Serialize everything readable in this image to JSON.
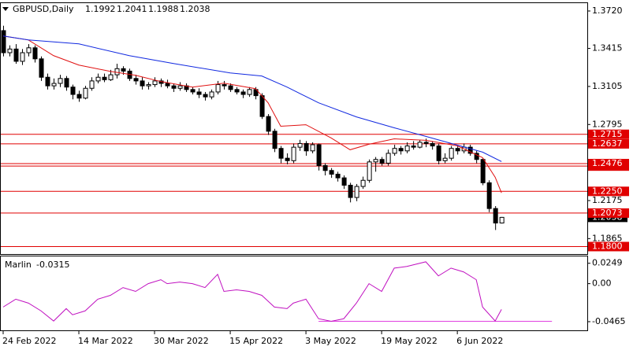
{
  "chart_data": [
    {
      "type": "candlestick",
      "title": "GBPUSD,Daily",
      "categories": [
        "24 Feb 2022",
        null,
        null,
        null,
        null,
        null,
        null,
        null,
        null,
        null,
        null,
        null,
        "14 Mar 2022",
        null,
        null,
        null,
        null,
        null,
        null,
        null,
        null,
        null,
        null,
        null,
        "30 Mar 2022",
        null,
        null,
        null,
        null,
        null,
        null,
        null,
        null,
        null,
        null,
        null,
        "15 Apr 2022",
        null,
        null,
        null,
        null,
        null,
        null,
        null,
        null,
        null,
        null,
        null,
        "3 May 2022",
        null,
        null,
        null,
        null,
        null,
        null,
        null,
        null,
        null,
        null,
        null,
        "19 May 2022",
        null,
        null,
        null,
        null,
        null,
        null,
        null,
        null,
        null,
        null,
        null,
        "6 Jun 2022",
        null,
        null,
        null,
        null,
        null,
        null,
        null
      ],
      "open": [
        1.356,
        1.338,
        1.341,
        1.331,
        1.338,
        1.342,
        1.333,
        1.318,
        1.311,
        1.313,
        1.317,
        1.31,
        1.304,
        1.301,
        1.309,
        1.315,
        1.318,
        1.316,
        1.32,
        1.325,
        1.323,
        1.317,
        1.315,
        1.311,
        1.312,
        1.315,
        1.313,
        1.311,
        1.309,
        1.311,
        1.308,
        1.306,
        1.304,
        1.302,
        1.306,
        1.312,
        1.311,
        1.308,
        1.306,
        1.304,
        1.308,
        1.303,
        1.286,
        1.274,
        1.26,
        1.252,
        1.25,
        1.261,
        1.264,
        1.258,
        1.263,
        1.246,
        1.242,
        1.239,
        1.236,
        1.23,
        1.22,
        1.229,
        1.234,
        1.249,
        1.251,
        1.248,
        1.256,
        1.26,
        1.258,
        1.262,
        1.261,
        1.265,
        1.264,
        1.262,
        1.25,
        1.252,
        1.26,
        1.258,
        1.261,
        1.256,
        1.251,
        1.232,
        1.211,
        1.1992
      ],
      "high": [
        1.36,
        1.344,
        1.345,
        1.341,
        1.345,
        1.344,
        1.335,
        1.321,
        1.317,
        1.32,
        1.319,
        1.312,
        1.307,
        1.311,
        1.318,
        1.321,
        1.321,
        1.324,
        1.329,
        1.327,
        1.325,
        1.32,
        1.318,
        1.314,
        1.318,
        1.317,
        1.316,
        1.313,
        1.314,
        1.313,
        1.31,
        1.309,
        1.306,
        1.308,
        1.315,
        1.315,
        1.313,
        1.31,
        1.308,
        1.31,
        1.31,
        1.305,
        1.288,
        1.276,
        1.262,
        1.256,
        1.264,
        1.267,
        1.266,
        1.265,
        1.264,
        1.248,
        1.244,
        1.241,
        1.238,
        1.232,
        1.231,
        1.237,
        1.251,
        1.253,
        1.253,
        1.259,
        1.263,
        1.262,
        1.265,
        1.266,
        1.267,
        1.268,
        1.266,
        1.264,
        1.256,
        1.262,
        1.262,
        1.264,
        1.263,
        1.258,
        1.252,
        1.234,
        1.213,
        1.2041
      ],
      "low": [
        1.335,
        1.335,
        1.329,
        1.328,
        1.335,
        1.33,
        1.315,
        1.308,
        1.308,
        1.31,
        1.307,
        1.3,
        1.298,
        1.3,
        1.307,
        1.313,
        1.314,
        1.315,
        1.317,
        1.32,
        1.315,
        1.312,
        1.308,
        1.308,
        1.31,
        1.31,
        1.309,
        1.306,
        1.307,
        1.306,
        1.304,
        1.301,
        1.299,
        1.3,
        1.304,
        1.308,
        1.306,
        1.304,
        1.301,
        1.302,
        1.3,
        1.284,
        1.271,
        1.257,
        1.248,
        1.247,
        1.248,
        1.258,
        1.254,
        1.256,
        1.242,
        1.238,
        1.236,
        1.233,
        1.227,
        1.216,
        1.217,
        1.227,
        1.232,
        1.241,
        1.246,
        1.246,
        1.254,
        1.255,
        1.256,
        1.259,
        1.26,
        1.261,
        1.259,
        1.247,
        1.248,
        1.25,
        1.255,
        1.256,
        1.254,
        1.248,
        1.23,
        1.208,
        1.1935,
        1.1988
      ],
      "close": [
        1.338,
        1.341,
        1.331,
        1.338,
        1.342,
        1.333,
        1.318,
        1.311,
        1.313,
        1.317,
        1.31,
        1.304,
        1.301,
        1.309,
        1.315,
        1.318,
        1.316,
        1.32,
        1.325,
        1.323,
        1.317,
        1.315,
        1.311,
        1.312,
        1.315,
        1.313,
        1.311,
        1.309,
        1.311,
        1.308,
        1.306,
        1.304,
        1.302,
        1.306,
        1.312,
        1.311,
        1.308,
        1.306,
        1.304,
        1.308,
        1.303,
        1.286,
        1.274,
        1.26,
        1.252,
        1.25,
        1.261,
        1.264,
        1.258,
        1.263,
        1.246,
        1.242,
        1.239,
        1.236,
        1.23,
        1.22,
        1.229,
        1.234,
        1.249,
        1.251,
        1.248,
        1.256,
        1.26,
        1.258,
        1.262,
        1.261,
        1.265,
        1.264,
        1.262,
        1.25,
        1.252,
        1.26,
        1.258,
        1.261,
        1.256,
        1.251,
        1.232,
        1.211,
        1.1992,
        1.2038
      ],
      "series": [
        {
          "color": "#e01010",
          "x": [
            0,
            4,
            8,
            12,
            17,
            21,
            25,
            30,
            35,
            40,
            42,
            44,
            48,
            52,
            55,
            58,
            62,
            67,
            72,
            76,
            78,
            79
          ],
          "values": [
            1.3516,
            1.3484,
            1.3356,
            1.3279,
            1.3228,
            1.3196,
            1.3145,
            1.31,
            1.3132,
            1.3087,
            1.2972,
            1.2781,
            1.2793,
            1.2685,
            1.2589,
            1.2634,
            1.2678,
            1.2666,
            1.2621,
            1.2525,
            1.2365,
            1.2238
          ]
        },
        {
          "color": "#1028e0",
          "x": [
            0,
            4,
            12,
            20,
            27,
            36,
            41,
            45,
            50,
            56,
            62,
            67,
            72,
            76,
            79
          ],
          "values": [
            1.3516,
            1.3484,
            1.3452,
            1.3356,
            1.3292,
            1.3215,
            1.319,
            1.31,
            1.2972,
            1.2857,
            1.2768,
            1.2698,
            1.2627,
            1.257,
            1.2493
          ]
        }
      ],
      "levels": [
        1.2715,
        1.2637,
        1.2476,
        1.2456,
        {
          "value": 1.225,
          "label": "1.2250"
        },
        1.2073,
        {
          "value": 1.18,
          "label": "1.1800"
        }
      ],
      "level_color": "#e00000",
      "xlim": [
        -0.5,
        92.6
      ],
      "ylim": [
        1.1739,
        1.3784
      ],
      "yticks": [
        {
          "value": 1.372,
          "label": "1.3720"
        },
        1.3415,
        1.3105,
        1.2795,
        1.2175,
        1.1865
      ]
    },
    {
      "type": "line",
      "title": "Marlin",
      "color": "#c010c0",
      "x": [
        0,
        2,
        4,
        6,
        8,
        10,
        11,
        13,
        15,
        17,
        19,
        21,
        23,
        25,
        26,
        28,
        30,
        32,
        34,
        35,
        37,
        39,
        41,
        43,
        45,
        46,
        48,
        50,
        52,
        54,
        56,
        58,
        60,
        62,
        64,
        67,
        69,
        71,
        73,
        75,
        76,
        78,
        79
      ],
      "values": [
        -0.0286,
        -0.019,
        -0.0238,
        -0.0333,
        -0.0457,
        -0.0305,
        -0.0381,
        -0.0333,
        -0.019,
        -0.0143,
        -0.0048,
        -0.0095,
        0,
        0.0048,
        0,
        0.0019,
        0,
        -0.0048,
        0.0114,
        -0.0095,
        -0.0076,
        -0.0095,
        -0.0143,
        -0.0286,
        -0.0305,
        -0.0238,
        -0.019,
        -0.0429,
        -0.046,
        -0.0429,
        -0.0238,
        0,
        -0.0095,
        0.019,
        0.021,
        0.0267,
        0.0095,
        0.019,
        0.0143,
        0.0048,
        -0.0286,
        -0.0457,
        -0.0315
      ],
      "level": {
        "value": -0.046,
        "x": [
          50,
          87
        ],
        "color": "#e040e0"
      },
      "ylim": [
        -0.0571,
        0.0333
      ],
      "yticks": [
        0.0249,
        {
          "value": 0,
          "label": "0.00"
        },
        -0.0465
      ]
    }
  ]
}
